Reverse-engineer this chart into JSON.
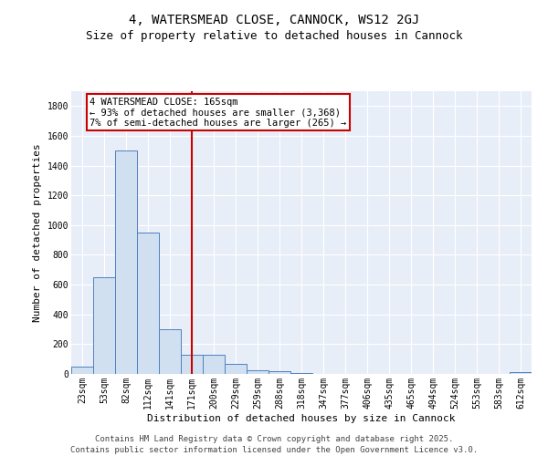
{
  "title": "4, WATERSMEAD CLOSE, CANNOCK, WS12 2GJ",
  "subtitle": "Size of property relative to detached houses in Cannock",
  "xlabel": "Distribution of detached houses by size in Cannock",
  "ylabel": "Number of detached properties",
  "categories": [
    "23sqm",
    "53sqm",
    "82sqm",
    "112sqm",
    "141sqm",
    "171sqm",
    "200sqm",
    "229sqm",
    "259sqm",
    "288sqm",
    "318sqm",
    "347sqm",
    "377sqm",
    "406sqm",
    "435sqm",
    "465sqm",
    "494sqm",
    "524sqm",
    "553sqm",
    "583sqm",
    "612sqm"
  ],
  "values": [
    50,
    650,
    1500,
    950,
    300,
    130,
    130,
    70,
    25,
    20,
    5,
    2,
    2,
    2,
    2,
    2,
    2,
    2,
    2,
    2,
    15
  ],
  "bar_color": "#d0e0f0",
  "bar_edge_color": "#5080c0",
  "vline_x": 5,
  "annotation_line1": "4 WATERSMEAD CLOSE: 165sqm",
  "annotation_line2": "← 93% of detached houses are smaller (3,368)",
  "annotation_line3": "7% of semi-detached houses are larger (265) →",
  "annotation_box_color": "#ffffff",
  "annotation_box_edge": "#cc0000",
  "vline_color": "#cc0000",
  "background_color": "#e8eef8",
  "ylim": [
    0,
    1900
  ],
  "yticks": [
    0,
    200,
    400,
    600,
    800,
    1000,
    1200,
    1400,
    1600,
    1800
  ],
  "footer_line1": "Contains HM Land Registry data © Crown copyright and database right 2025.",
  "footer_line2": "Contains public sector information licensed under the Open Government Licence v3.0.",
  "title_fontsize": 10,
  "subtitle_fontsize": 9,
  "ylabel_fontsize": 8,
  "xlabel_fontsize": 8,
  "tick_fontsize": 7,
  "annotation_fontsize": 7.5,
  "footer_fontsize": 6.5
}
